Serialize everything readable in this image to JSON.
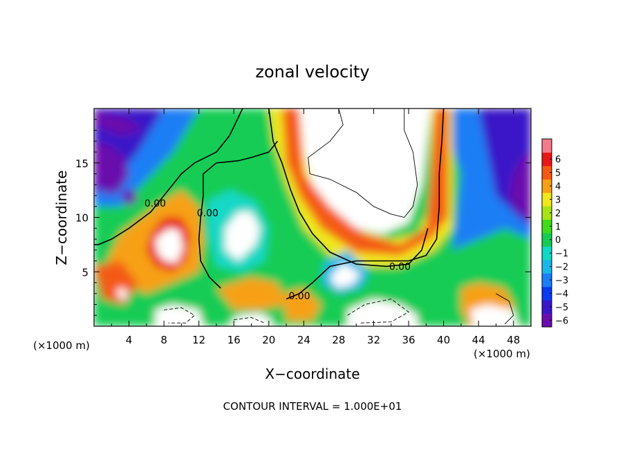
{
  "chart_data": {
    "type": "heatmap",
    "title": "zonal velocity",
    "xlabel": "X−coordinate",
    "ylabel": "Z−coordinate",
    "x_unit_left": "(×1000 m)",
    "x_unit_right": "(×1000 m)",
    "footer": "CONTOUR INTERVAL = 1.000E+01",
    "contour_label": "0.00",
    "xlim": [
      0,
      50
    ],
    "ylim": [
      0,
      20
    ],
    "x_ticks": [
      "4",
      "8",
      "12",
      "16",
      "20",
      "24",
      "28",
      "32",
      "36",
      "40",
      "44",
      "48"
    ],
    "x_tick_values": [
      4,
      8,
      12,
      16,
      20,
      24,
      28,
      32,
      36,
      40,
      44,
      48
    ],
    "y_ticks": [
      "5",
      "10",
      "15"
    ],
    "y_tick_values": [
      5,
      10,
      15
    ],
    "colorbar": {
      "levels": [
        -6,
        -5,
        -4,
        -3,
        -2,
        -1,
        0,
        1,
        2,
        3,
        4,
        5,
        6
      ],
      "labels": [
        "−6",
        "−5",
        "−4",
        "−3",
        "−2",
        "−1",
        "0",
        "1",
        "2",
        "3",
        "4",
        "5",
        "6"
      ],
      "colors": [
        "#6a0dad",
        "#3a16c8",
        "#0a3cf0",
        "#1a7ef5",
        "#17b8e8",
        "#12d8c6",
        "#15cc55",
        "#40dc1a",
        "#a8e414",
        "#f0e81a",
        "#f7a015",
        "#f45a15",
        "#e81818",
        "#f47b8b"
      ]
    },
    "regions": [
      {
        "v": 0,
        "pts": [
          [
            0,
            20
          ],
          [
            50,
            20
          ],
          [
            50,
            0
          ],
          [
            0,
            0
          ]
        ]
      },
      {
        "v": -3,
        "pts": [
          [
            0,
            20
          ],
          [
            12,
            20
          ],
          [
            9,
            16
          ],
          [
            3,
            11
          ],
          [
            0,
            11
          ]
        ]
      },
      {
        "v": -5,
        "pts": [
          [
            0,
            20
          ],
          [
            8,
            20
          ],
          [
            5,
            16
          ],
          [
            2,
            13
          ],
          [
            0,
            12
          ]
        ]
      },
      {
        "v": -7,
        "pts": [
          [
            0,
            19.8
          ],
          [
            4,
            19
          ],
          [
            5.5,
            18
          ],
          [
            3,
            17.5
          ],
          [
            0,
            18.5
          ]
        ]
      },
      {
        "v": -7,
        "pts": [
          [
            0,
            17
          ],
          [
            2,
            16.5
          ],
          [
            3.5,
            15.5
          ],
          [
            4,
            14
          ],
          [
            3.2,
            12.8
          ],
          [
            2,
            12
          ],
          [
            0.5,
            12.8
          ],
          [
            0,
            14
          ]
        ]
      },
      {
        "v": -7,
        "pts": [
          [
            3,
            12.3
          ],
          [
            4.5,
            12.6
          ],
          [
            5,
            11.5
          ],
          [
            3.8,
            11
          ]
        ]
      },
      {
        "v": -3,
        "pts": [
          [
            39.5,
            20
          ],
          [
            50,
            20
          ],
          [
            50,
            8
          ],
          [
            47,
            9
          ],
          [
            44,
            8
          ],
          [
            41,
            7
          ],
          [
            42,
            14
          ]
        ]
      },
      {
        "v": -5,
        "pts": [
          [
            44,
            20
          ],
          [
            50,
            20
          ],
          [
            50,
            9
          ],
          [
            48,
            10.5
          ],
          [
            46,
            12
          ],
          [
            45,
            16
          ]
        ]
      },
      {
        "v": -7,
        "pts": [
          [
            49,
            15.5
          ],
          [
            50,
            16
          ],
          [
            50,
            9.5
          ],
          [
            48.5,
            10.5
          ],
          [
            47.5,
            12
          ],
          [
            48,
            14
          ]
        ]
      },
      {
        "v": 3,
        "pts": [
          [
            20,
            20
          ],
          [
            24,
            20
          ],
          [
            24.5,
            15
          ],
          [
            26,
            12
          ],
          [
            30,
            9
          ],
          [
            34,
            8
          ],
          [
            37,
            8.5
          ],
          [
            38.5,
            11
          ],
          [
            38.5,
            20
          ],
          [
            41,
            20
          ],
          [
            41,
            9
          ],
          [
            39,
            7
          ],
          [
            35,
            5.5
          ],
          [
            30,
            5.5
          ],
          [
            27,
            6.5
          ],
          [
            24,
            9
          ],
          [
            22,
            13
          ],
          [
            20.5,
            17
          ]
        ]
      },
      {
        "v": 5,
        "pts": [
          [
            21.5,
            20
          ],
          [
            23.5,
            20
          ],
          [
            24,
            14
          ],
          [
            27,
            11
          ],
          [
            31,
            8.5
          ],
          [
            35,
            7.5
          ],
          [
            38,
            9
          ],
          [
            38.5,
            13
          ],
          [
            39,
            20
          ],
          [
            40.5,
            20
          ],
          [
            40.5,
            10
          ],
          [
            38.5,
            8
          ],
          [
            35,
            6.5
          ],
          [
            30,
            6.8
          ],
          [
            26,
            9
          ],
          [
            23.5,
            12
          ],
          [
            22,
            15
          ]
        ]
      },
      {
        "v": 7,
        "pts": [
          [
            23.5,
            20
          ],
          [
            38.5,
            20
          ],
          [
            37.5,
            13
          ],
          [
            36,
            9.5
          ],
          [
            33,
            8.5
          ],
          [
            30,
            9
          ],
          [
            27,
            11
          ],
          [
            25,
            13
          ],
          [
            24,
            16
          ]
        ]
      },
      {
        "v": 4,
        "pts": [
          [
            3,
            8.5
          ],
          [
            7,
            11
          ],
          [
            10,
            12.5
          ],
          [
            12,
            11
          ],
          [
            12.5,
            8
          ],
          [
            12,
            5
          ],
          [
            9,
            4
          ],
          [
            6,
            3
          ],
          [
            3,
            4
          ],
          [
            1.5,
            6
          ]
        ]
      },
      {
        "v": 6,
        "pts": [
          [
            6.5,
            8.5
          ],
          [
            8,
            10
          ],
          [
            10,
            10
          ],
          [
            11,
            8.5
          ],
          [
            10.5,
            6
          ],
          [
            9,
            5
          ],
          [
            7,
            5.5
          ],
          [
            6,
            7
          ]
        ]
      },
      {
        "v": 7,
        "pts": [
          [
            7,
            8
          ],
          [
            8.5,
            9
          ],
          [
            9.8,
            8.8
          ],
          [
            10.2,
            7.2
          ],
          [
            9.5,
            5.8
          ],
          [
            8,
            6
          ],
          [
            7.2,
            6.8
          ]
        ]
      },
      {
        "v": -1,
        "pts": [
          [
            13,
            11.5
          ],
          [
            15.5,
            12.5
          ],
          [
            18.5,
            11.5
          ],
          [
            20,
            9
          ],
          [
            19.5,
            6
          ],
          [
            17,
            5
          ],
          [
            14,
            5.5
          ],
          [
            13,
            8.5
          ]
        ]
      },
      {
        "v": 7,
        "pts": [
          [
            15,
            9
          ],
          [
            16.5,
            10.5
          ],
          [
            18,
            10.5
          ],
          [
            19,
            9
          ],
          [
            18.5,
            7.5
          ],
          [
            16.5,
            6
          ],
          [
            15,
            7
          ]
        ]
      },
      {
        "v": -2,
        "pts": [
          [
            26.5,
            6
          ],
          [
            29,
            7
          ],
          [
            31.5,
            5
          ],
          [
            30.5,
            3.5
          ],
          [
            28,
            3
          ],
          [
            26,
            4
          ]
        ]
      },
      {
        "v": 7,
        "pts": [
          [
            27,
            4.5
          ],
          [
            28.5,
            5.8
          ],
          [
            30.5,
            4.8
          ],
          [
            29.5,
            3.8
          ],
          [
            27.8,
            3.5
          ]
        ]
      },
      {
        "v": 5,
        "pts": [
          [
            0,
            5.5
          ],
          [
            3,
            6
          ],
          [
            5,
            4
          ],
          [
            3.5,
            2
          ],
          [
            1,
            2.5
          ]
        ]
      },
      {
        "v": 7,
        "pts": [
          [
            2.5,
            3.2
          ],
          [
            3.3,
            3.6
          ],
          [
            3.9,
            2.9
          ],
          [
            3.2,
            2.3
          ]
        ]
      },
      {
        "v": 4,
        "pts": [
          [
            14,
            3.5
          ],
          [
            18,
            4.5
          ],
          [
            21,
            4
          ],
          [
            22,
            2
          ],
          [
            19,
            1.5
          ],
          [
            16,
            1.5
          ]
        ]
      },
      {
        "v": 4,
        "pts": [
          [
            21.5,
            3
          ],
          [
            24,
            3.5
          ],
          [
            26,
            2
          ],
          [
            25,
            0.5
          ],
          [
            22,
            0.5
          ]
        ]
      },
      {
        "v": 7,
        "pts": [
          [
            7,
            1.5
          ],
          [
            9,
            2
          ],
          [
            12,
            1.5
          ],
          [
            12.5,
            0
          ],
          [
            7,
            0
          ]
        ]
      },
      {
        "v": 7,
        "pts": [
          [
            15.5,
            0.3
          ],
          [
            16.5,
            1
          ],
          [
            19,
            1.2
          ],
          [
            20.5,
            0.5
          ],
          [
            20,
            0
          ],
          [
            16,
            0
          ]
        ]
      },
      {
        "v": 7,
        "pts": [
          [
            29,
            1.5
          ],
          [
            32,
            2.5
          ],
          [
            35,
            2
          ],
          [
            37,
            1
          ],
          [
            37,
            0
          ],
          [
            29,
            0
          ]
        ]
      },
      {
        "v": 4,
        "pts": [
          [
            42,
            3.5
          ],
          [
            44,
            4
          ],
          [
            47,
            3.5
          ],
          [
            48,
            2
          ],
          [
            48,
            0
          ],
          [
            43,
            0
          ],
          [
            42,
            1.5
          ]
        ]
      },
      {
        "v": 7,
        "pts": [
          [
            43,
            1.5
          ],
          [
            45,
            2
          ],
          [
            48,
            1.5
          ],
          [
            48.5,
            0
          ],
          [
            43.5,
            0
          ]
        ]
      }
    ],
    "contours_solid": [
      [
        [
          17,
          20
        ],
        [
          15.5,
          17.5
        ],
        [
          14,
          16
        ],
        [
          11.5,
          15
        ],
        [
          10,
          14
        ],
        [
          8.5,
          12.5
        ],
        [
          6.5,
          10.5
        ],
        [
          4,
          9
        ],
        [
          2,
          8
        ],
        [
          0.5,
          7.5
        ],
        [
          0,
          7.5
        ]
      ],
      [
        [
          21,
          17
        ],
        [
          20,
          16
        ],
        [
          18,
          15.5
        ],
        [
          16.5,
          15.2
        ],
        [
          14,
          15
        ],
        [
          12.5,
          14
        ],
        [
          12.5,
          12
        ],
        [
          12.2,
          10
        ],
        [
          12,
          8
        ],
        [
          12.2,
          6
        ],
        [
          13.2,
          4.5
        ],
        [
          14.5,
          3.5
        ]
      ],
      [
        [
          22,
          2.5
        ],
        [
          23.5,
          3
        ],
        [
          25,
          4
        ],
        [
          27,
          5.5
        ],
        [
          30,
          6
        ],
        [
          33,
          6
        ],
        [
          36,
          6
        ],
        [
          38,
          6.5
        ],
        [
          39.2,
          8
        ],
        [
          39.5,
          11
        ],
        [
          39.5,
          14
        ],
        [
          39.8,
          17
        ],
        [
          40,
          20
        ]
      ],
      [
        [
          38.2,
          9
        ],
        [
          37.5,
          7
        ],
        [
          36,
          5.7
        ],
        [
          33.5,
          5.5
        ],
        [
          30,
          5.7
        ],
        [
          27,
          6.8
        ],
        [
          25,
          8.5
        ],
        [
          23.5,
          10.5
        ],
        [
          22.5,
          12.5
        ],
        [
          21.5,
          15
        ],
        [
          20.5,
          17
        ],
        [
          20,
          20
        ]
      ]
    ],
    "contours_thin": [
      [
        [
          28,
          20
        ],
        [
          28.5,
          18.5
        ],
        [
          27,
          17
        ],
        [
          24.5,
          15.5
        ],
        [
          24.7,
          14
        ],
        [
          27,
          13.5
        ],
        [
          30,
          12.3
        ],
        [
          32,
          11
        ],
        [
          34,
          10.3
        ],
        [
          35.5,
          10
        ],
        [
          36.5,
          11
        ],
        [
          37,
          13
        ],
        [
          36.5,
          16
        ],
        [
          35.5,
          18
        ],
        [
          35.5,
          20
        ]
      ],
      [
        [
          46,
          3
        ],
        [
          47.5,
          2.3
        ],
        [
          48,
          1
        ],
        [
          47,
          0.2
        ]
      ]
    ],
    "contours_dashed": [
      [
        [
          8,
          1.5
        ],
        [
          10,
          1.7
        ],
        [
          11.5,
          1
        ],
        [
          10.5,
          0.3
        ],
        [
          8.5,
          0.3
        ]
      ],
      [
        [
          29,
          1
        ],
        [
          31,
          2
        ],
        [
          34,
          2.5
        ],
        [
          36,
          1.3
        ],
        [
          34,
          0.4
        ],
        [
          30.5,
          0.3
        ]
      ],
      [
        [
          16,
          0.6
        ],
        [
          18,
          0.8
        ],
        [
          19.5,
          0.3
        ]
      ]
    ],
    "contour_label_positions": [
      [
        7,
        11.3
      ],
      [
        13,
        10.4
      ],
      [
        23.5,
        2.8
      ],
      [
        35,
        5.5
      ]
    ]
  }
}
